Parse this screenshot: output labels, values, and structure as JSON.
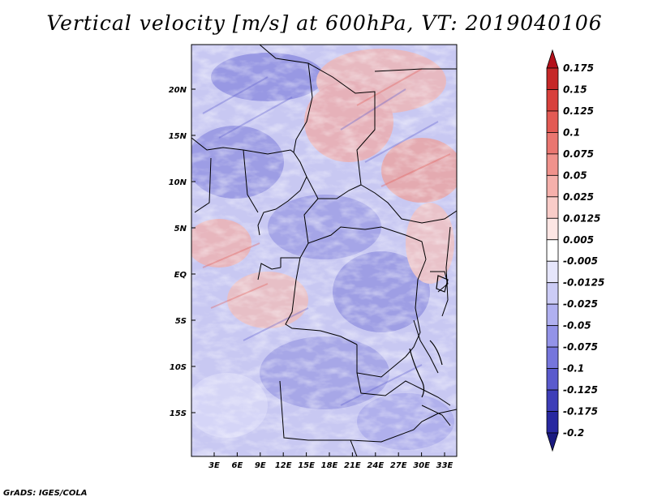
{
  "title": "Vertical velocity [m/s] at 600hPa, VT: 2019040106",
  "credit": "GrADS: IGES/COLA",
  "lat_labels": [
    "20N",
    "15N",
    "10N",
    "5N",
    "EQ",
    "5S",
    "10S",
    "15S"
  ],
  "lon_labels": [
    "3E",
    "6E",
    "9E",
    "12E",
    "15E",
    "18E",
    "21E",
    "24E",
    "27E",
    "30E",
    "33E"
  ],
  "colorbar": {
    "labels": [
      "0.175",
      "0.15",
      "0.125",
      "0.1",
      "0.075",
      "0.05",
      "0.025",
      "0.0125",
      "0.005",
      "-0.005",
      "-0.0125",
      "-0.025",
      "-0.05",
      "-0.075",
      "-0.1",
      "-0.125",
      "-0.175",
      "-0.2"
    ],
    "colors": [
      "#b3101a",
      "#c62828",
      "#d8403c",
      "#e35a54",
      "#ea7670",
      "#f0928c",
      "#f5b0ab",
      "#f9ccc8",
      "#fde6e4",
      "#ffffff",
      "#e6e6fb",
      "#ccccf6",
      "#b0b0f0",
      "#9393e8",
      "#7676dc",
      "#5a5acd",
      "#3e3eb8",
      "#2828a0",
      "#1a1a80"
    ]
  }
}
